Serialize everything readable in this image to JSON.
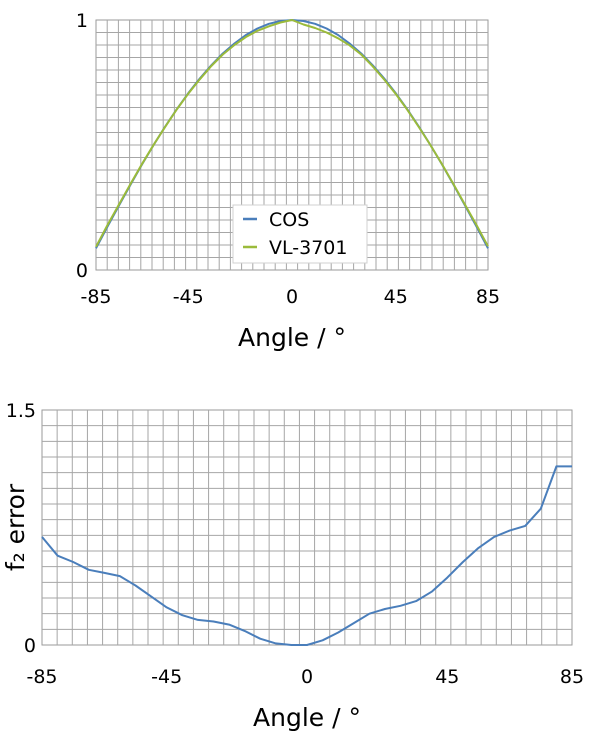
{
  "chart_data": [
    {
      "type": "line",
      "xlabel": "Angle / °",
      "ylabel": "",
      "xlim": [
        -85,
        85
      ],
      "ylim": [
        0,
        1
      ],
      "xticks": [
        "-85",
        "-45",
        "0",
        "45",
        "85"
      ],
      "yticks": [
        "0",
        "1"
      ],
      "grid": true,
      "legend_position": "bottom-center",
      "x": [
        -85,
        -80,
        -75,
        -70,
        -65,
        -60,
        -55,
        -50,
        -45,
        -40,
        -35,
        -30,
        -25,
        -20,
        -15,
        -10,
        -5,
        0,
        5,
        10,
        15,
        20,
        25,
        30,
        35,
        40,
        45,
        50,
        55,
        60,
        65,
        70,
        75,
        80,
        85
      ],
      "series": [
        {
          "name": "COS",
          "color": "#4a7ebb",
          "values": [
            0.087,
            0.174,
            0.259,
            0.342,
            0.423,
            0.5,
            0.574,
            0.643,
            0.707,
            0.766,
            0.819,
            0.866,
            0.906,
            0.94,
            0.966,
            0.985,
            0.996,
            1.0,
            0.996,
            0.985,
            0.966,
            0.94,
            0.906,
            0.866,
            0.819,
            0.766,
            0.707,
            0.643,
            0.574,
            0.5,
            0.423,
            0.342,
            0.259,
            0.174,
            0.087
          ]
        },
        {
          "name": "VL-3701",
          "color": "#9bbb3b",
          "values": [
            0.093,
            0.18,
            0.263,
            0.345,
            0.425,
            0.501,
            0.573,
            0.642,
            0.705,
            0.763,
            0.816,
            0.862,
            0.9,
            0.932,
            0.957,
            0.975,
            0.99,
            1.0,
            0.982,
            0.968,
            0.95,
            0.927,
            0.899,
            0.862,
            0.815,
            0.762,
            0.704,
            0.641,
            0.572,
            0.5,
            0.424,
            0.344,
            0.262,
            0.18,
            0.095
          ]
        }
      ]
    },
    {
      "type": "line",
      "xlabel": "Angle / °",
      "ylabel": "f₂ error",
      "xlim": [
        -85,
        85
      ],
      "ylim": [
        0,
        1.5
      ],
      "xticks": [
        "-85",
        "-45",
        "0",
        "45",
        "85"
      ],
      "yticks": [
        "0",
        "1.5"
      ],
      "grid": true,
      "x": [
        -85,
        -80,
        -75,
        -70,
        -65,
        -60,
        -55,
        -50,
        -45,
        -40,
        -35,
        -30,
        -25,
        -20,
        -15,
        -10,
        -5,
        0,
        5,
        10,
        15,
        20,
        25,
        30,
        35,
        40,
        45,
        50,
        55,
        60,
        65,
        70,
        75,
        80,
        85
      ],
      "series": [
        {
          "name": "",
          "color": "#4a7ebb",
          "values": [
            0.69,
            0.57,
            0.53,
            0.48,
            0.46,
            0.44,
            0.38,
            0.31,
            0.24,
            0.19,
            0.16,
            0.15,
            0.13,
            0.09,
            0.04,
            0.01,
            0.0,
            0.0,
            0.03,
            0.08,
            0.14,
            0.2,
            0.23,
            0.25,
            0.28,
            0.34,
            0.43,
            0.53,
            0.62,
            0.69,
            0.73,
            0.76,
            0.87,
            1.14,
            1.14
          ]
        }
      ]
    }
  ]
}
